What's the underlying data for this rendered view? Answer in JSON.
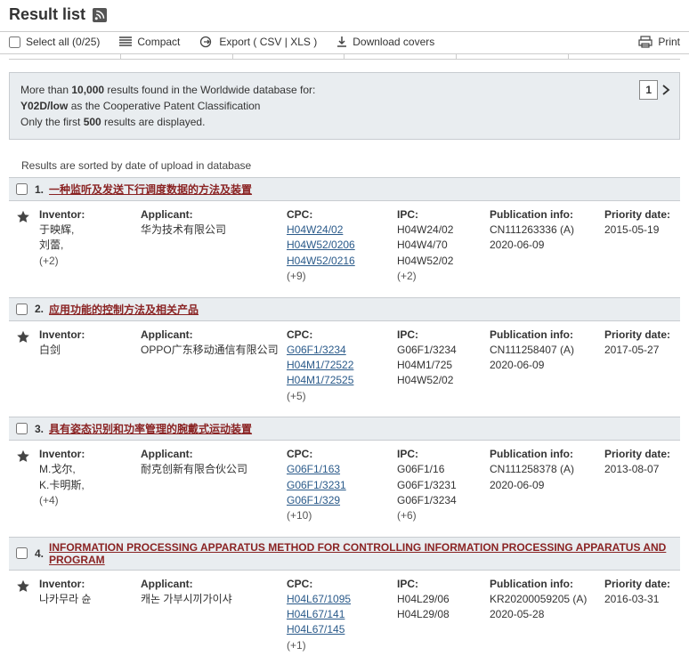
{
  "header": {
    "title": "Result list"
  },
  "toolbar": {
    "select_all": "Select all  (0/25)",
    "compact": "Compact",
    "export": "Export ( CSV | XLS )",
    "download_covers": "Download covers",
    "print": "Print"
  },
  "infobox": {
    "l1a": "More than ",
    "l1b": "10,000",
    "l1c": " results found in the Worldwide database for:",
    "l2a": "Y02D/low",
    "l2b": " as the Cooperative Patent Classification",
    "l3a": "Only the first ",
    "l3b": "500",
    "l3c": " results are displayed.",
    "page": "1"
  },
  "sort_note": "Results are sorted by date of upload in database",
  "labels": {
    "inventor": "Inventor:",
    "applicant": "Applicant:",
    "cpc": "CPC:",
    "ipc": "IPC:",
    "pub": "Publication info:",
    "prio": "Priority date:"
  },
  "results": [
    {
      "num": "1.",
      "title": "一种监听及发送下行调度数据的方法及装置",
      "inventor": "于映辉,\n刘蕾,",
      "inv_more": "(+2)",
      "applicant": "华为技术有限公司",
      "cpc": [
        "H04W24/02",
        "H04W52/0206",
        "H04W52/0216"
      ],
      "cpc_more": "(+9)",
      "ipc": [
        "H04W24/02",
        "H04W4/70",
        "H04W52/02"
      ],
      "ipc_more": "(+2)",
      "pub": "CN111263336 (A)\n2020-06-09",
      "prio": "2015-05-19"
    },
    {
      "num": "2.",
      "title": "应用功能的控制方法及相关产品",
      "inventor": "白剑",
      "inv_more": "",
      "applicant": "OPPO广东移动通信有限公司",
      "cpc": [
        "G06F1/3234",
        "H04M1/72522",
        "H04M1/72525"
      ],
      "cpc_more": "(+5)",
      "ipc": [
        "G06F1/3234",
        "H04M1/725",
        "H04W52/02"
      ],
      "ipc_more": "",
      "pub": "CN111258407 (A)\n2020-06-09",
      "prio": "2017-05-27"
    },
    {
      "num": "3.",
      "title": "具有姿态识别和功率管理的腕戴式运动装置",
      "inventor": "M.戈尔,\nK.卡明斯,",
      "inv_more": "(+4)",
      "applicant": "耐克创新有限合伙公司",
      "cpc": [
        "G06F1/163",
        "G06F1/3231",
        "G06F1/329"
      ],
      "cpc_more": "(+10)",
      "ipc": [
        "G06F1/16",
        "G06F1/3231",
        "G06F1/3234"
      ],
      "ipc_more": "(+6)",
      "pub": "CN111258378 (A)\n2020-06-09",
      "prio": "2013-08-07"
    },
    {
      "num": "4.",
      "title": "INFORMATION PROCESSING APPARATUS METHOD FOR CONTROLLING INFORMATION PROCESSING APPARATUS AND PROGRAM",
      "inventor": "나카무라 슌",
      "inv_more": "",
      "applicant": "캐논 가부시끼가이샤",
      "cpc": [
        "H04L67/1095",
        "H04L67/141",
        "H04L67/145"
      ],
      "cpc_more": "(+1)",
      "ipc": [
        "H04L29/06",
        "H04L29/08"
      ],
      "ipc_more": "",
      "pub": "KR20200059205 (A)\n2020-05-28",
      "prio": "2016-03-31"
    }
  ]
}
